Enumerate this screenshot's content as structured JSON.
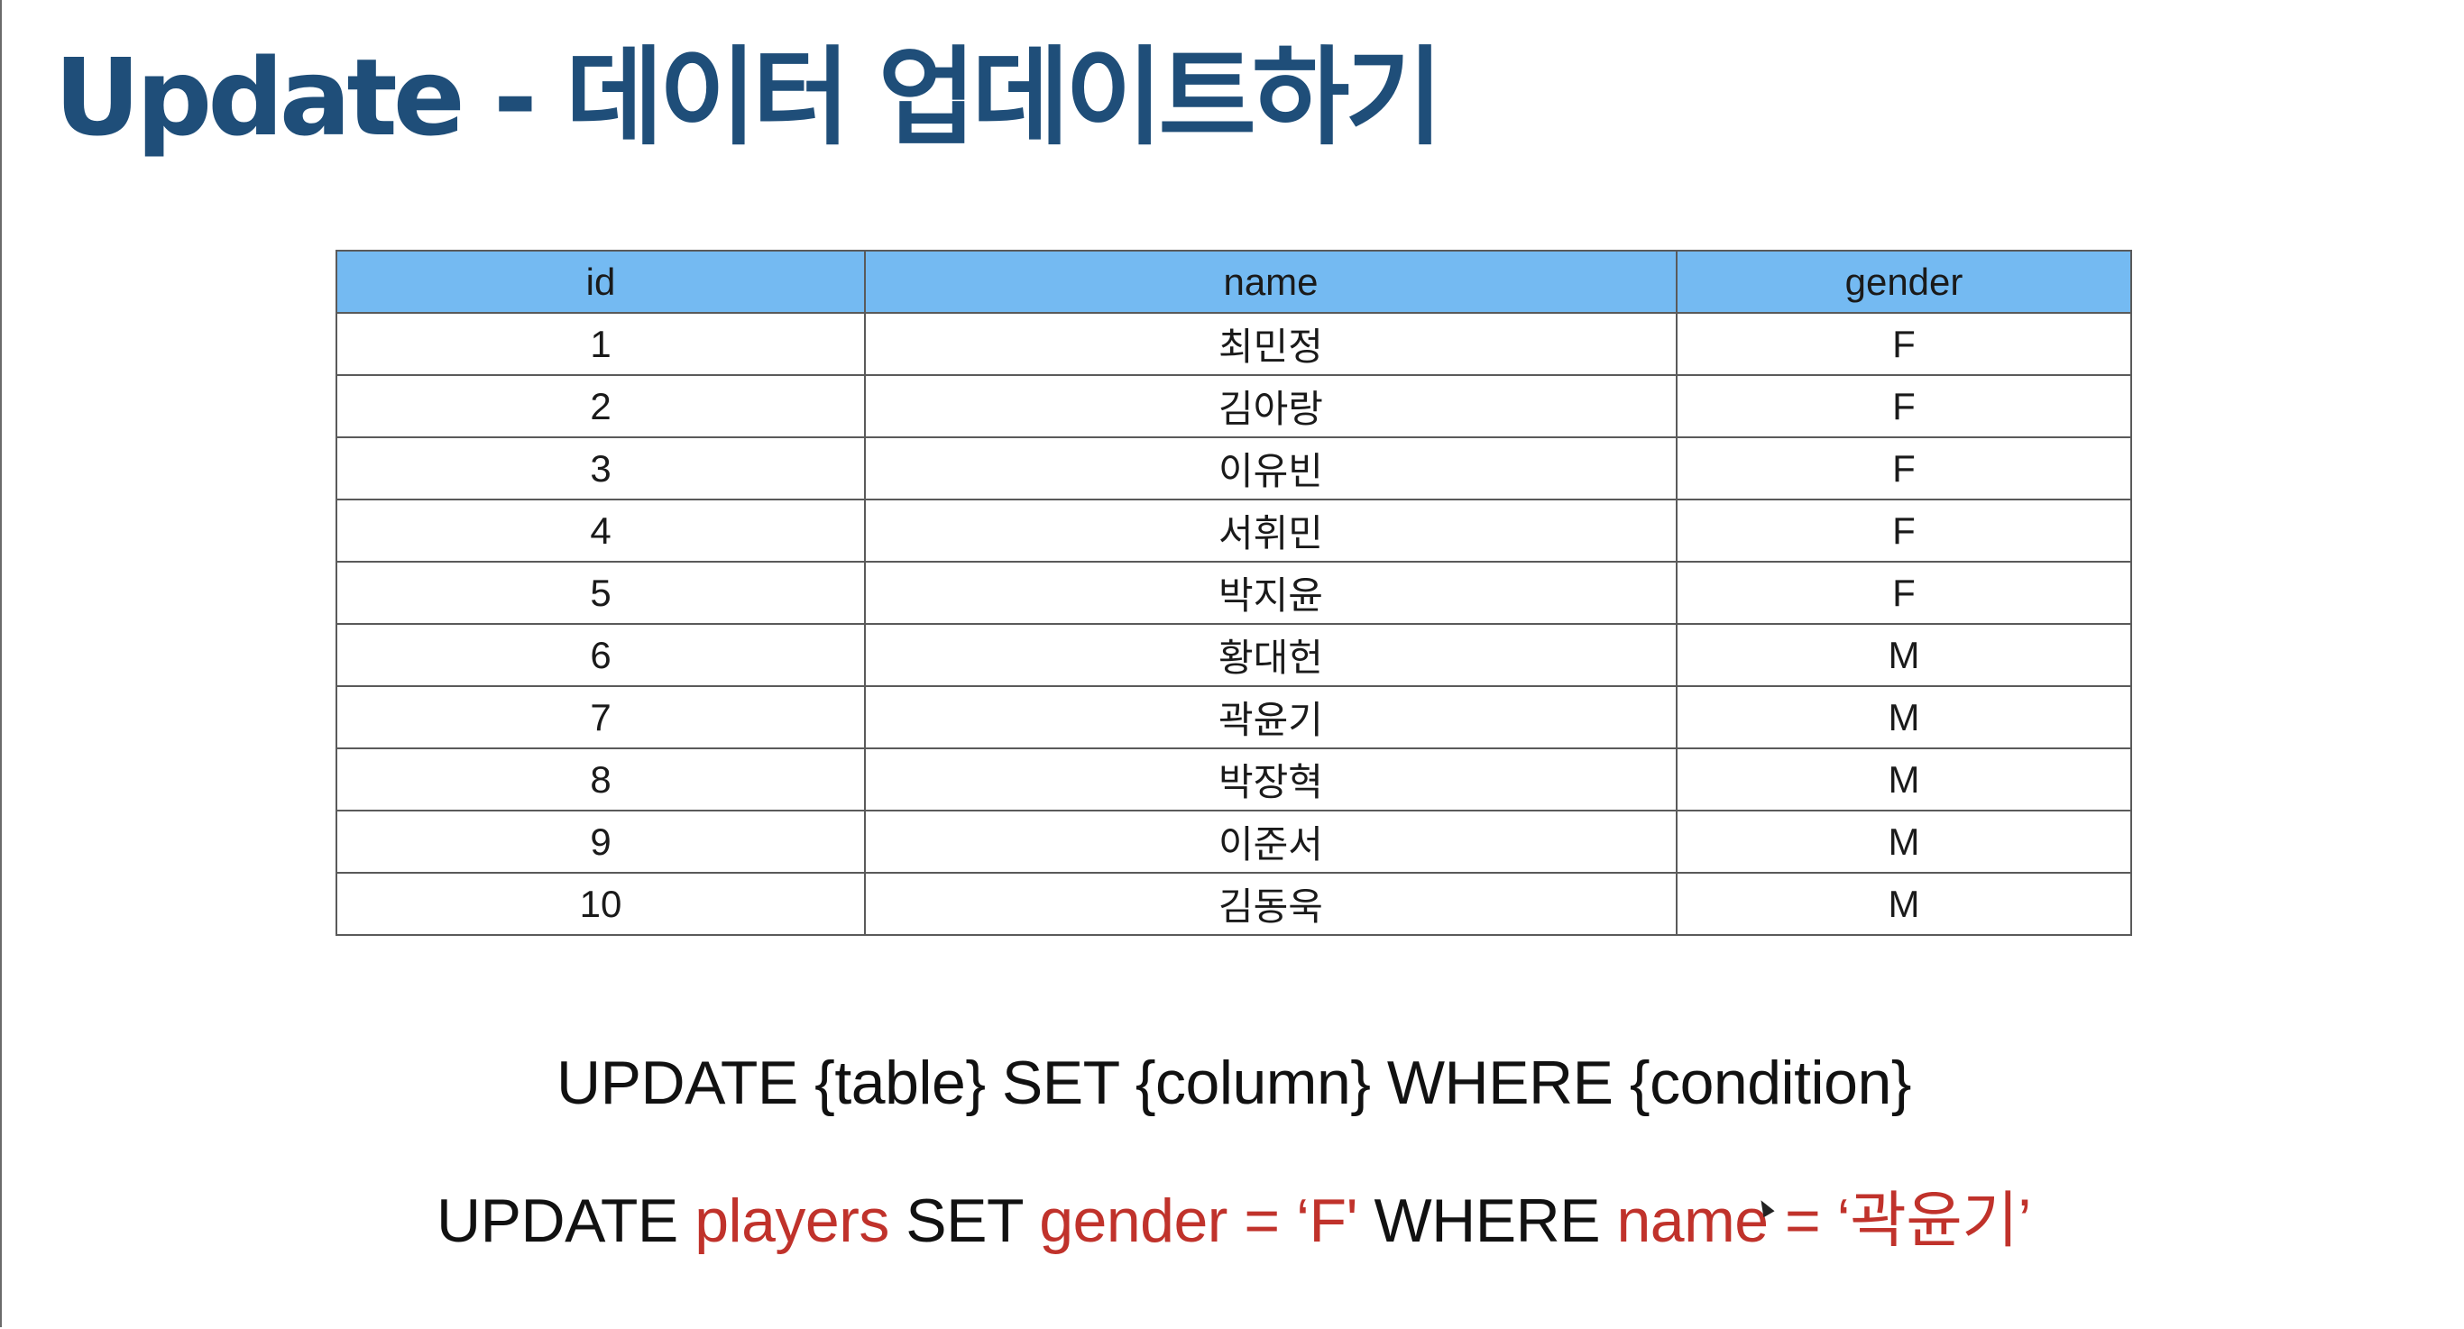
{
  "slide": {
    "title": "Update - 데이터 업데이트하기"
  },
  "table": {
    "headers": [
      "id",
      "name",
      "gender"
    ],
    "rows": [
      [
        "1",
        "최민정",
        "F"
      ],
      [
        "2",
        "김아랑",
        "F"
      ],
      [
        "3",
        "이유빈",
        "F"
      ],
      [
        "4",
        "서휘민",
        "F"
      ],
      [
        "5",
        "박지윤",
        "F"
      ],
      [
        "6",
        "황대헌",
        "M"
      ],
      [
        "7",
        "곽윤기",
        "M"
      ],
      [
        "8",
        "박장혁",
        "M"
      ],
      [
        "9",
        "이준서",
        "M"
      ],
      [
        "10",
        "김동욱",
        "M"
      ]
    ]
  },
  "syntax": "UPDATE {table} SET {column} WHERE {condition}",
  "example": {
    "kw_update": "UPDATE ",
    "table": "players",
    "kw_set": " SET ",
    "set_expr": "gender = ‘F'",
    "kw_where": " WHERE ",
    "where_expr": "name = ‘곽윤기’"
  },
  "colors": {
    "title": "#1f4e79",
    "header_bg": "#74baf2",
    "highlight": "#c0322b"
  }
}
